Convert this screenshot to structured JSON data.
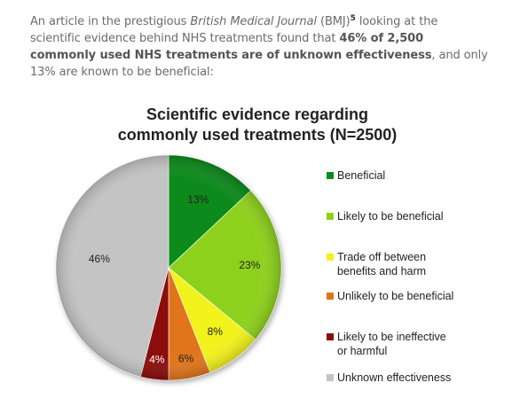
{
  "intro": {
    "part1": "An article in the prestigious ",
    "journal": "British Medical Journal",
    "part2": " (BMJ)",
    "footnote": "5",
    "part3": " looking at the scientific evidence behind NHS treatments found that ",
    "bold": "46% of 2,500 commonly used NHS treatments are of unknown effectiveness",
    "part4": ", and only 13% are known to be beneficial:"
  },
  "chart_data": {
    "type": "pie",
    "title_line1": "Scientific evidence regarding",
    "title_line2": "commonly used treatments (N=2500)",
    "categories": [
      "Beneficial",
      "Likely to be beneficial",
      "Trade off between benefits and harm",
      "Unlikely to be beneficial",
      "Likely to be ineffective or harmful",
      "Unknown effectiveness"
    ],
    "values": [
      13,
      23,
      8,
      6,
      4,
      46
    ],
    "labels": [
      "13%",
      "23%",
      "8%",
      "6%",
      "4%",
      "46%"
    ],
    "colors": [
      "#0c8a1f",
      "#8ed11b",
      "#f2f21a",
      "#e0741b",
      "#8b0e0e",
      "#c4c4c4"
    ],
    "legend": {
      "placement": "right",
      "items": [
        {
          "line1": "Beneficial",
          "line2": ""
        },
        {
          "line1": "Likely to be beneficial",
          "line2": ""
        },
        {
          "line1": "Trade off between",
          "line2": "benefits and harm"
        },
        {
          "line1": "Unlikely to be beneficial",
          "line2": ""
        },
        {
          "line1": "Likely to be ineffective",
          "line2": "or harmful"
        },
        {
          "line1": "Unknown effectiveness",
          "line2": ""
        }
      ]
    }
  }
}
